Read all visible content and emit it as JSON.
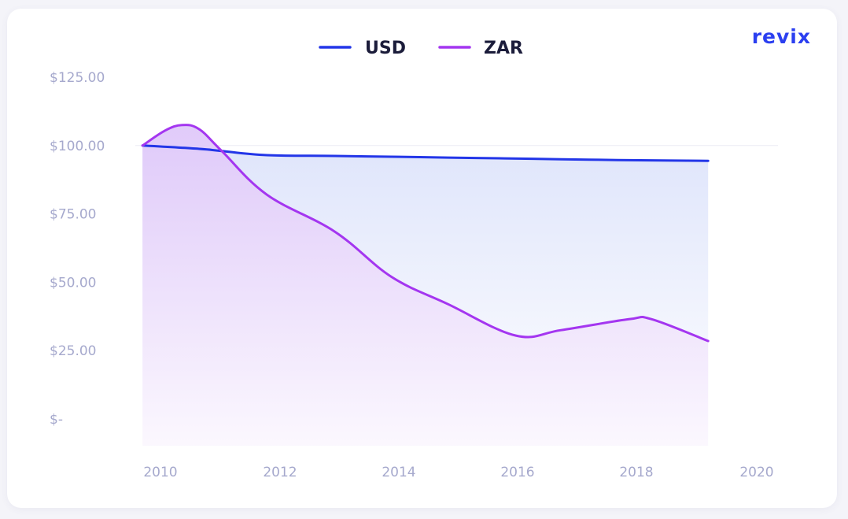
{
  "brand": {
    "logo_text": "revix",
    "logo_color": "#2b3ff0"
  },
  "chart_data": {
    "type": "area",
    "title": "",
    "xlabel": "",
    "ylabel": "",
    "legend_position": "top-center",
    "grid": false,
    "x_ticks": [
      "2010",
      "2012",
      "2014",
      "2016",
      "2018",
      "2020"
    ],
    "y_ticks": [
      "$125.00",
      "$100.00",
      "$75.00",
      "$50.00",
      "$25.00",
      "$-"
    ],
    "ylim": [
      0,
      125
    ],
    "xlim": [
      2009.5,
      2020.0
    ],
    "series": [
      {
        "name": "USD",
        "color": "#2336e8",
        "x": [
          2009.6,
          2010.6,
          2011.0,
          2011.8,
          2013.0,
          2014.0,
          2015.0,
          2016.0,
          2017.0,
          2018.0,
          2019.0,
          2019.6
        ],
        "values": [
          100.0,
          98.8,
          98.0,
          96.5,
          96.2,
          95.9,
          95.6,
          95.3,
          95.0,
          94.7,
          94.5,
          94.4
        ]
      },
      {
        "name": "ZAR",
        "color": "#a436f0",
        "x": [
          2009.6,
          2010.0,
          2010.3,
          2010.6,
          2011.0,
          2011.8,
          2013.0,
          2014.0,
          2015.0,
          2016.2,
          2017.0,
          2018.2,
          2018.6,
          2019.6
        ],
        "values": [
          100.0,
          105.5,
          107.5,
          106.0,
          98.0,
          82.0,
          68.5,
          52.0,
          42.0,
          30.5,
          32.5,
          36.5,
          36.5,
          28.5
        ]
      }
    ]
  }
}
